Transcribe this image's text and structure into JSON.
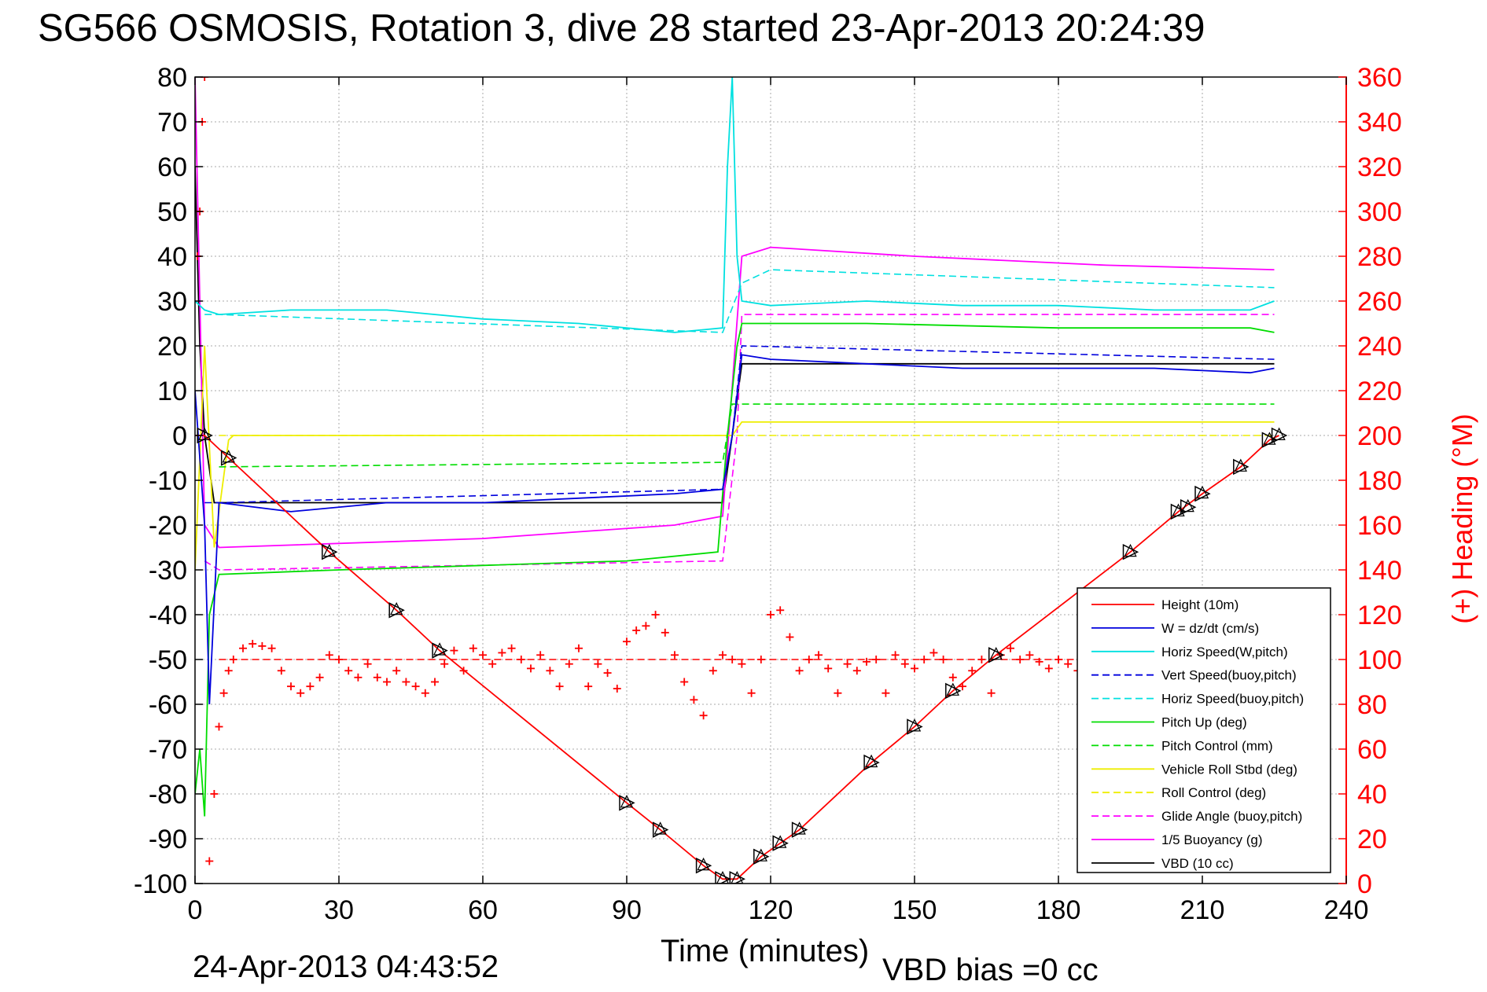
{
  "title": "SG566 OSMOSIS, Rotation 3, dive 28 started 23-Apr-2013 20:24:39",
  "footer": {
    "date": "24-Apr-2013 04:43:52",
    "vbd": "VBD bias =0 cc"
  },
  "colors": {
    "red": "#ff0000",
    "blue": "#0000dd",
    "cyan": "#00e0e0",
    "green": "#00dd00",
    "yellow": "#eeee00",
    "magenta": "#ff00ff",
    "black": "#000000"
  },
  "chart_data": {
    "type": "line",
    "title": "SG566 OSMOSIS, Rotation 3, dive 28 started 23-Apr-2013 20:24:39",
    "xlabel": "Time (minutes)",
    "ylabel": "",
    "ylabel_right": "(+) Heading (°M)",
    "xlim": [
      0,
      240
    ],
    "ylim": [
      -100,
      80
    ],
    "ylim_right": [
      0,
      360
    ],
    "xticks": [
      0,
      30,
      60,
      90,
      120,
      150,
      180,
      210,
      240
    ],
    "yticks": [
      80,
      70,
      60,
      50,
      40,
      30,
      20,
      10,
      0,
      -10,
      -20,
      -30,
      -40,
      -50,
      -60,
      -70,
      -80,
      -90,
      -100
    ],
    "yticks_right": [
      360,
      340,
      320,
      300,
      280,
      260,
      240,
      220,
      200,
      180,
      160,
      140,
      120,
      100,
      80,
      60,
      40,
      20,
      0
    ],
    "grid": true,
    "legend_position": "bottom-right",
    "series": [
      {
        "name": "Height (10m)",
        "color": "#ff0000",
        "style": "solid",
        "x": [
          0,
          2,
          7,
          28,
          42,
          51,
          90,
          97,
          106,
          110,
          113,
          118,
          122,
          126,
          141,
          150,
          158,
          167,
          195,
          205,
          210,
          218,
          224,
          226
        ],
        "y": [
          0,
          0,
          -5,
          -26,
          -39,
          -48,
          -82,
          -88,
          -96,
          -99,
          -99,
          -94,
          -91,
          -88,
          -73,
          -65,
          -57,
          -49,
          -26,
          -17,
          -13,
          -7,
          -1,
          0
        ]
      },
      {
        "name": "W = dz/dt (cm/s)",
        "color": "#0000dd",
        "style": "solid",
        "x": [
          0,
          2,
          3,
          5,
          20,
          40,
          60,
          80,
          100,
          110,
          112,
          114,
          120,
          140,
          160,
          180,
          200,
          220,
          225
        ],
        "y": [
          10,
          -20,
          -60,
          -15,
          -17,
          -15,
          -15,
          -14,
          -13,
          -12,
          0,
          18,
          17,
          16,
          15,
          15,
          15,
          14,
          15
        ]
      },
      {
        "name": "Horiz Speed(W,pitch)",
        "color": "#00e0e0",
        "style": "solid",
        "x": [
          0,
          2,
          5,
          20,
          40,
          60,
          80,
          100,
          110,
          111,
          112,
          113,
          114,
          120,
          140,
          160,
          180,
          200,
          220,
          225
        ],
        "y": [
          30,
          28,
          27,
          28,
          28,
          26,
          25,
          23,
          24,
          60,
          80,
          40,
          30,
          29,
          30,
          29,
          29,
          28,
          28,
          30
        ]
      },
      {
        "name": "Vert Speed(buoy,pitch)",
        "color": "#0000dd",
        "style": "dashed",
        "x": [
          2,
          5,
          110,
          112,
          114,
          225
        ],
        "y": [
          -15,
          -15,
          -12,
          0,
          20,
          17
        ]
      },
      {
        "name": "Horiz Speed(buoy,pitch)",
        "color": "#00e0e0",
        "style": "dashed",
        "x": [
          2,
          5,
          110,
          114,
          120,
          225
        ],
        "y": [
          27,
          27,
          23,
          34,
          37,
          33
        ]
      },
      {
        "name": "Pitch Up (deg)",
        "color": "#00dd00",
        "style": "solid",
        "x": [
          0,
          1,
          2,
          3,
          5,
          30,
          60,
          90,
          109,
          111,
          113,
          114,
          140,
          180,
          220,
          225
        ],
        "y": [
          -80,
          -70,
          -85,
          -40,
          -31,
          -30,
          -29,
          -28,
          -26,
          0,
          20,
          25,
          25,
          24,
          24,
          23
        ]
      },
      {
        "name": "Pitch Control (mm)",
        "color": "#00dd00",
        "style": "dashed",
        "x": [
          5,
          110,
          112,
          225
        ],
        "y": [
          -7,
          -6,
          7,
          7
        ]
      },
      {
        "name": "Vehicle Roll Stbd (deg)",
        "color": "#eeee00",
        "style": "solid",
        "x": [
          0,
          2,
          4,
          7,
          8,
          110,
          112,
          114,
          225
        ],
        "y": [
          -30,
          20,
          -25,
          -1,
          0,
          0,
          0,
          3,
          3
        ]
      },
      {
        "name": "Roll Control (deg)",
        "color": "#eeee00",
        "style": "dashed",
        "x": [
          5,
          110,
          113,
          225
        ],
        "y": [
          0,
          0,
          0,
          0
        ]
      },
      {
        "name": "Glide Angle (buoy,pitch)",
        "color": "#ff00ff",
        "style": "dashed",
        "x": [
          2,
          5,
          110,
          113,
          114,
          225
        ],
        "y": [
          -28,
          -30,
          -28,
          0,
          27,
          27
        ]
      },
      {
        "name": "1/5 Buoyancy (g)",
        "color": "#ff00ff",
        "style": "solid",
        "x": [
          0,
          2,
          5,
          60,
          100,
          110,
          114,
          120,
          150,
          190,
          225
        ],
        "y": [
          80,
          -20,
          -25,
          -23,
          -20,
          -18,
          40,
          42,
          40,
          38,
          37
        ]
      },
      {
        "name": "VBD (10 cc)",
        "color": "#000000",
        "style": "solid",
        "x": [
          0,
          1,
          2,
          4,
          110,
          112,
          114,
          225
        ],
        "y": [
          60,
          20,
          0,
          -15,
          -15,
          0,
          16,
          16
        ]
      }
    ],
    "heading": {
      "name": "(+) Heading",
      "color": "#ff0000",
      "marker": "+",
      "axis": "right",
      "x": [
        0.5,
        1,
        1.5,
        2,
        3,
        4,
        5,
        6,
        7,
        8,
        10,
        12,
        14,
        16,
        18,
        20,
        22,
        24,
        26,
        28,
        30,
        32,
        34,
        36,
        38,
        40,
        42,
        44,
        46,
        48,
        50,
        52,
        54,
        56,
        58,
        60,
        62,
        64,
        66,
        68,
        70,
        72,
        74,
        76,
        78,
        80,
        82,
        84,
        86,
        88,
        90,
        92,
        94,
        96,
        98,
        100,
        102,
        104,
        106,
        108,
        110,
        112,
        114,
        116,
        118,
        120,
        122,
        124,
        126,
        128,
        130,
        132,
        134,
        136,
        138,
        140,
        142,
        144,
        146,
        148,
        150,
        152,
        154,
        156,
        158,
        160,
        162,
        164,
        166,
        168,
        170,
        172,
        174,
        176,
        178,
        180,
        182,
        184,
        186
      ],
      "y": [
        280,
        300,
        340,
        360,
        10,
        40,
        70,
        85,
        95,
        100,
        105,
        107,
        106,
        105,
        95,
        88,
        85,
        88,
        92,
        102,
        100,
        95,
        92,
        98,
        92,
        90,
        95,
        90,
        88,
        85,
        90,
        98,
        104,
        95,
        105,
        102,
        98,
        103,
        105,
        100,
        96,
        102,
        95,
        88,
        98,
        105,
        88,
        98,
        94,
        87,
        108,
        113,
        115,
        120,
        112,
        102,
        90,
        82,
        75,
        95,
        102,
        100,
        98,
        85,
        100,
        120,
        122,
        110,
        95,
        100,
        102,
        96,
        85,
        98,
        95,
        99,
        100,
        85,
        102,
        98,
        96,
        100,
        103,
        100,
        92,
        88,
        95,
        100,
        85,
        102,
        105,
        100,
        102,
        99,
        96,
        100,
        98,
        95,
        92
      ]
    },
    "reference_lines": [
      {
        "name": "heading reference",
        "color": "#ff0000",
        "style": "dashed",
        "axis": "right",
        "y": 100,
        "x": [
          5,
          186
        ]
      }
    ],
    "markers": {
      "name": "dive markers",
      "color": "#000000",
      "x": [
        2,
        7,
        28,
        42,
        51,
        90,
        97,
        106,
        110,
        113,
        118,
        122,
        126,
        141,
        150,
        158,
        167,
        195,
        205,
        207,
        210,
        218,
        224,
        226
      ],
      "y": [
        0,
        -5,
        -26,
        -39,
        -48,
        -82,
        -88,
        -96,
        -99,
        -99,
        -94,
        -91,
        -88,
        -73,
        -65,
        -57,
        -49,
        -26,
        -17,
        -16,
        -13,
        -7,
        -1,
        0
      ]
    }
  }
}
